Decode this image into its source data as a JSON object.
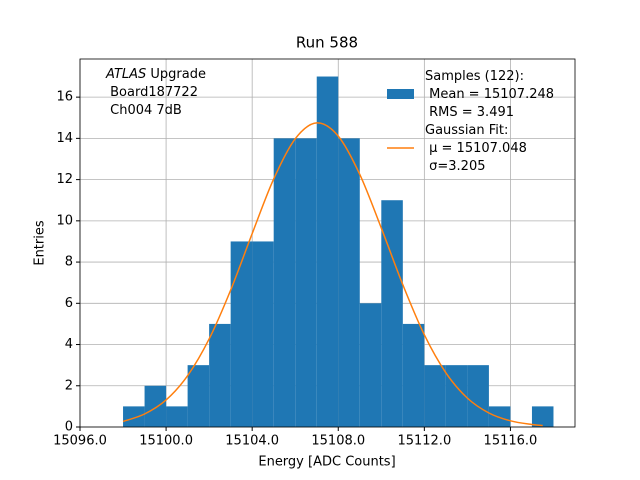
{
  "chart_data": {
    "type": "histogram",
    "title": "Run 588",
    "xlabel": "Energy [ADC Counts]",
    "ylabel": "Entries",
    "annotation": {
      "emphasis": "ATLAS",
      "text": "Upgrade\n Board187722\n Ch004 7dB"
    },
    "bins": [
      15098,
      15099,
      15100,
      15101,
      15102,
      15103,
      15104,
      15105,
      15106,
      15107,
      15108,
      15109,
      15110,
      15111,
      15112,
      15113,
      15114,
      15115,
      15116,
      15117,
      15118
    ],
    "series": [
      {
        "name": "Samples (122):\n Mean = 15107.248\n RMS = 3.491",
        "color": "#1f77b4",
        "values": [
          1,
          2,
          1,
          3,
          5,
          9,
          9,
          14,
          14,
          17,
          14,
          6,
          11,
          5,
          3,
          3,
          3,
          1,
          0,
          1
        ]
      },
      {
        "name": "Gaussian Fit:\n $\\mu$ = 15107.048\n $\\sigma$=3.205",
        "color": "#ff7f0e",
        "type": "line",
        "x": [
          15098,
          15099,
          15100,
          15101,
          15102,
          15103,
          15104,
          15105,
          15106,
          15107,
          15108,
          15109,
          15110,
          15111,
          15112,
          15113,
          15114,
          15115,
          15116,
          15117,
          15117.5
        ],
        "values": [
          0.27,
          0.63,
          1.31,
          2.49,
          4.27,
          6.64,
          9.38,
          12.03,
          13.98,
          14.75,
          14.11,
          12.25,
          9.65,
          6.9,
          4.47,
          2.63,
          1.4,
          0.68,
          0.3,
          0.12,
          0.07
        ]
      }
    ],
    "xlim": [
      15096,
      15119
    ],
    "ylim": [
      0,
      17.85
    ],
    "xticks": [
      {
        "value": 15096,
        "label": "15096.0"
      },
      {
        "value": 15100,
        "label": "15100.0"
      },
      {
        "value": 15104,
        "label": "15104.0"
      },
      {
        "value": 15108,
        "label": "15108.0"
      },
      {
        "value": 15112,
        "label": "15112.0"
      },
      {
        "value": 15116,
        "label": "15116.0"
      }
    ],
    "yticks": [
      0,
      2,
      4,
      6,
      8,
      10,
      12,
      14,
      16
    ],
    "grid": true,
    "legend": "upper right"
  }
}
